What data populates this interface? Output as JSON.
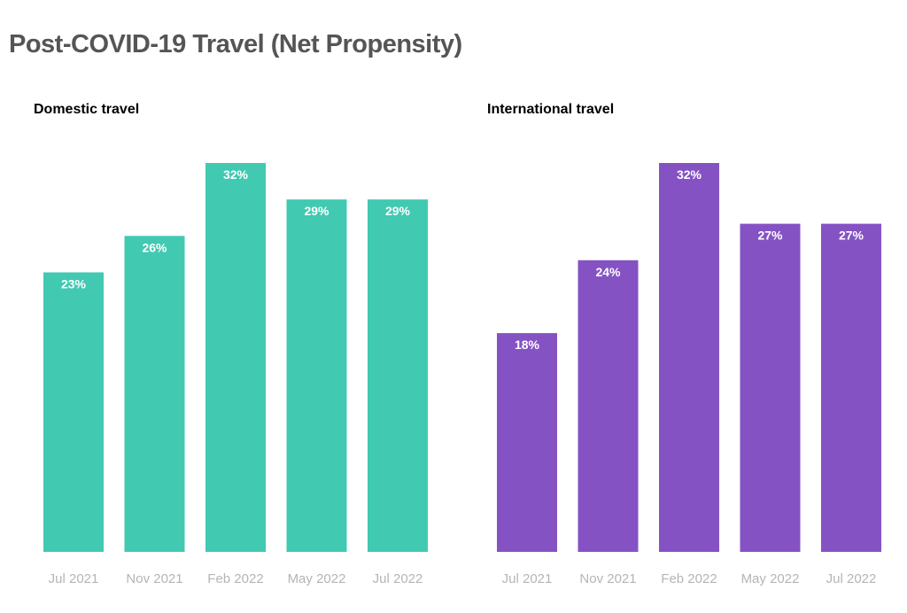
{
  "page": {
    "title": "Post-COVID-19 Travel (Net Propensity)"
  },
  "chart_data": [
    {
      "type": "bar",
      "title": "Domestic travel",
      "color": "#41c9b1",
      "categories": [
        "Jul 2021",
        "Nov 2021",
        "Feb 2022",
        "May 2022",
        "Jul 2022"
      ],
      "values": [
        23,
        26,
        32,
        29,
        29
      ],
      "value_labels": [
        "23%",
        "26%",
        "32%",
        "29%",
        "29%"
      ],
      "unit": "%",
      "xlabel": "",
      "ylabel": "",
      "ylim": [
        0,
        32
      ],
      "grid": false,
      "legend": "none"
    },
    {
      "type": "bar",
      "title": "International travel",
      "color": "#8552c4",
      "categories": [
        "Jul 2021",
        "Nov 2021",
        "Feb 2022",
        "May 2022",
        "Jul 2022"
      ],
      "values": [
        18,
        24,
        32,
        27,
        27
      ],
      "value_labels": [
        "18%",
        "24%",
        "32%",
        "27%",
        "27%"
      ],
      "unit": "%",
      "xlabel": "",
      "ylabel": "",
      "ylim": [
        0,
        32
      ],
      "grid": false,
      "legend": "none"
    }
  ]
}
